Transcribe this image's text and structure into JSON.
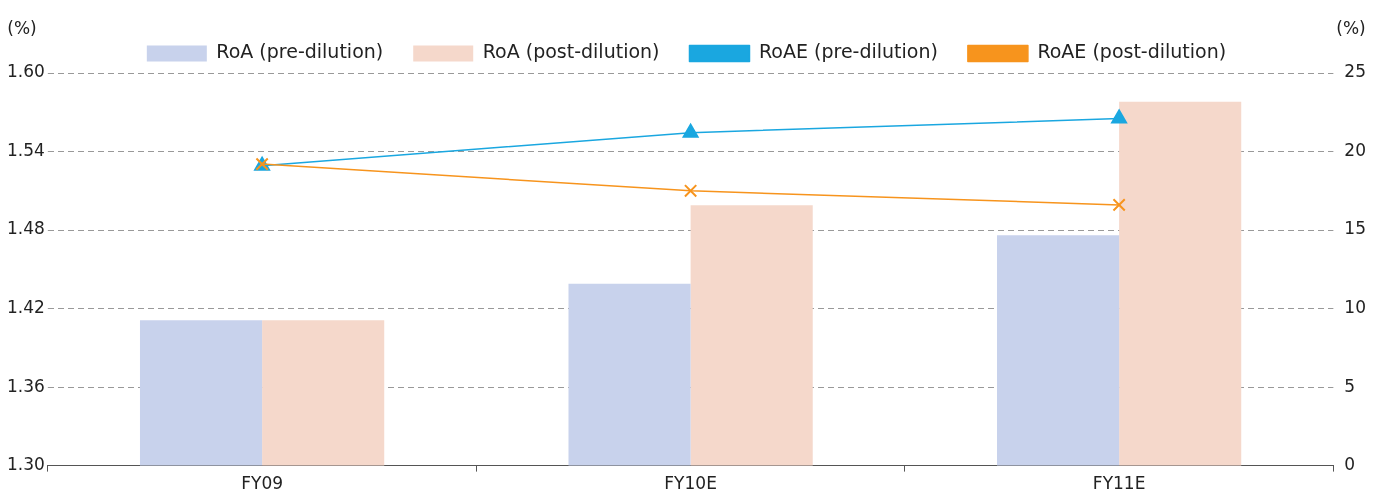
{
  "chart_data": {
    "type": "bar",
    "categories": [
      "FY09",
      "FY10E",
      "FY11E"
    ],
    "series": [
      {
        "name": "RoA (pre-dilution)",
        "color": "#c8d2ec",
        "values": [
          1.411,
          1.439,
          1.476
        ]
      },
      {
        "name": "RoA (post-dilution)",
        "color": "#f5d8cb",
        "values": [
          1.411,
          1.499,
          1.578
        ]
      },
      {
        "name": "RoAE (pre-dilution)",
        "type": "line",
        "axis": "y2",
        "marker": "triangle",
        "color": "#1aa7e0",
        "values": [
          19.1,
          21.2,
          22.1
        ]
      },
      {
        "name": "RoAE (post-dilution)",
        "type": "line",
        "axis": "y2",
        "marker": "cross",
        "color": "#f7941d",
        "values": [
          19.2,
          17.5,
          16.6
        ]
      }
    ],
    "ylabel": "(%)",
    "y2label": "(%)",
    "ylim": [
      1.3,
      1.6
    ],
    "yticks": [
      {
        "value": 1.3,
        "label": "1.30"
      },
      {
        "value": 1.36,
        "label": "1.36"
      },
      {
        "value": 1.42,
        "label": "1.42"
      },
      {
        "value": 1.48,
        "label": "1.48"
      },
      {
        "value": 1.54,
        "label": "1.54"
      },
      {
        "value": 1.6,
        "label": "1.60"
      }
    ],
    "y2lim": [
      0,
      25
    ],
    "y2ticks": [
      0,
      5,
      10,
      15,
      20,
      25
    ],
    "grid": "y",
    "legend": "top",
    "line_style": "solid"
  }
}
